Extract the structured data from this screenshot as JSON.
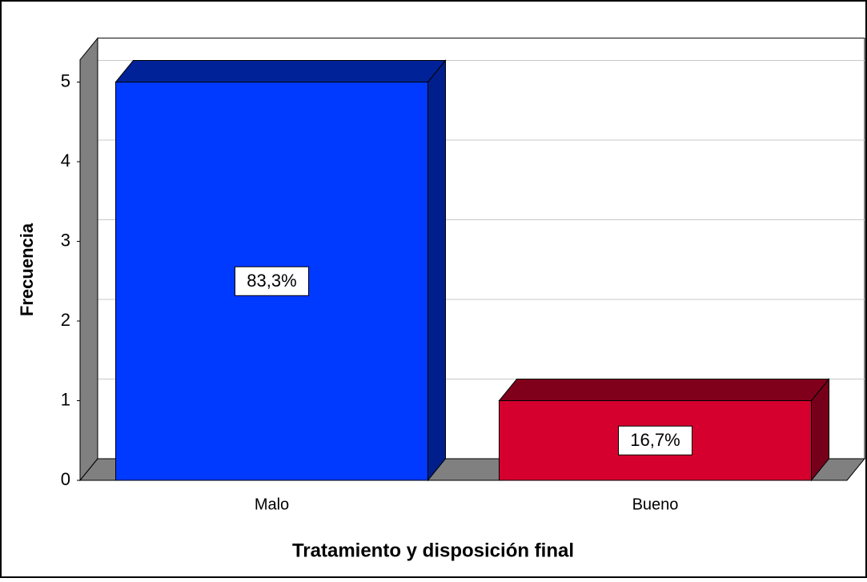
{
  "chart_data": {
    "type": "bar3d",
    "categories": [
      "Malo",
      "Bueno"
    ],
    "values": [
      5,
      1
    ],
    "percentages": [
      83.3,
      16.7
    ],
    "percentage_labels": [
      "83,3%",
      "16,7%"
    ],
    "colors": [
      "#0039ff",
      "#d6002f"
    ],
    "y_label": "Frecuencia",
    "x_label": "Tratamiento y disposición final",
    "ylim": [
      0,
      5.28
    ],
    "yticks": [
      0,
      1,
      2,
      3,
      4,
      5
    ],
    "grid": true
  }
}
